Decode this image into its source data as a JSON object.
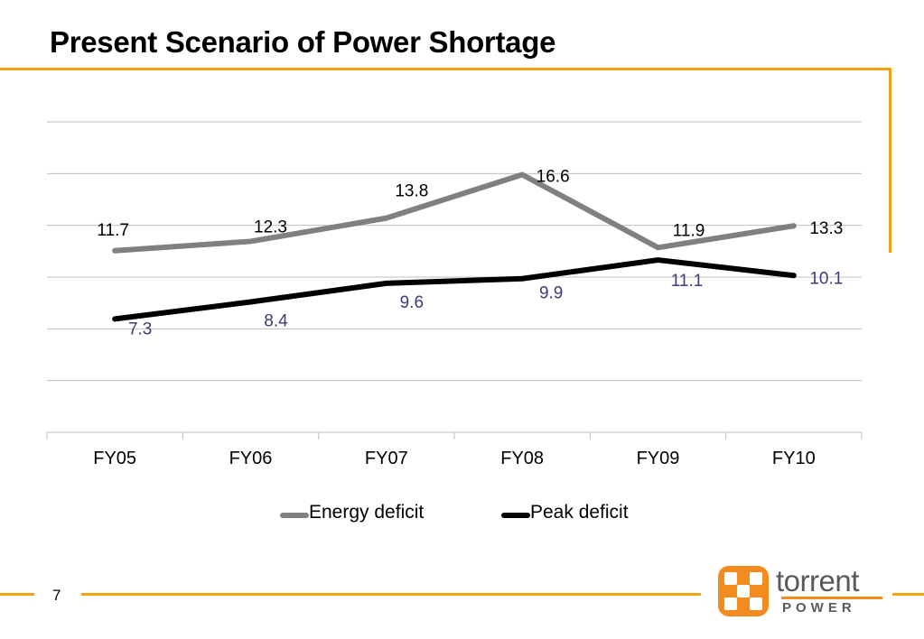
{
  "slide": {
    "title": "Present Scenario of Power Shortage",
    "page_number": "7"
  },
  "logo": {
    "word": "torrent",
    "sub": "POWER",
    "colors": {
      "mark": "#f28c1e",
      "text": "#5a5a5a"
    }
  },
  "colors": {
    "accent": "#f2a413",
    "energy": "#808080",
    "peak": "#000000",
    "peak_label": "#3c3c78"
  },
  "chart_data": {
    "type": "line",
    "categories": [
      "FY05",
      "FY06",
      "FY07",
      "FY08",
      "FY09",
      "FY10"
    ],
    "series": [
      {
        "name": "Energy deficit",
        "values": [
          11.7,
          12.3,
          13.8,
          16.6,
          11.9,
          13.3
        ]
      },
      {
        "name": "Peak deficit",
        "values": [
          7.3,
          8.4,
          9.6,
          9.9,
          11.1,
          10.1
        ]
      }
    ],
    "ylim": [
      0,
      20
    ],
    "grid": true,
    "legend_position": "bottom"
  }
}
